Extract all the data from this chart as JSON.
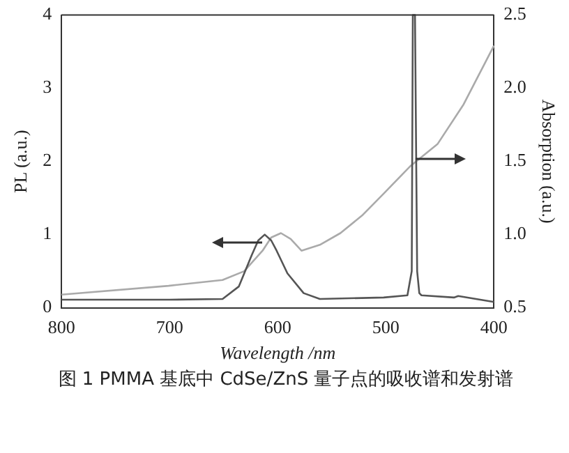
{
  "chart_data": {
    "type": "line",
    "xlabel": "Wavelength /nm",
    "ylabel": "PL (a.u.)",
    "y2label": "Absorption (a.u.)",
    "xlim": [
      800,
      400
    ],
    "xticks": [
      800,
      700,
      600,
      500,
      400
    ],
    "ylim": [
      0,
      4
    ],
    "yticks": [
      0,
      1,
      2,
      3,
      4
    ],
    "y2lim": [
      0.5,
      2.5
    ],
    "y2ticks": [
      {
        "value": 0.5,
        "label": "0.5"
      },
      {
        "value": 1,
        "label": "1.0"
      },
      {
        "value": 1.5,
        "label": "1.5"
      },
      {
        "value": 2,
        "label": "2.0"
      },
      {
        "value": 2.5,
        "label": "2.5"
      }
    ],
    "grid": false,
    "legend": false,
    "marker": "none",
    "line_style": "solid",
    "series": [
      {
        "color": "#555555",
        "x": [
          800,
          700,
          651,
          636,
          624,
          618,
          612,
          606,
          601,
          591,
          576,
          561,
          502,
          480,
          476,
          475,
          473,
          471,
          469,
          467,
          437,
          433,
          400
        ],
        "values": [
          0.11,
          0.11,
          0.12,
          0.29,
          0.72,
          0.92,
          1.0,
          0.92,
          0.78,
          0.47,
          0.2,
          0.12,
          0.14,
          0.17,
          0.5,
          4,
          4,
          0.5,
          0.2,
          0.17,
          0.14,
          0.16,
          0.08
        ]
      },
      {
        "color": "#aaaaaa",
        "axis": "y2",
        "x": [
          800,
          701,
          651,
          631,
          614,
          606,
          597,
          588,
          578,
          561,
          542,
          522,
          502,
          477,
          452,
          428,
          400
        ],
        "values": [
          0.59,
          0.65,
          0.69,
          0.75,
          0.89,
          0.98,
          1.01,
          0.97,
          0.89,
          0.93,
          1.01,
          1.13,
          1.28,
          1.47,
          1.62,
          1.89,
          2.29
        ]
      }
    ],
    "annotations": [
      "图 1  PMMA 基底中 CdSe/ZnS 量子点的吸收谱和发射谱"
    ]
  }
}
